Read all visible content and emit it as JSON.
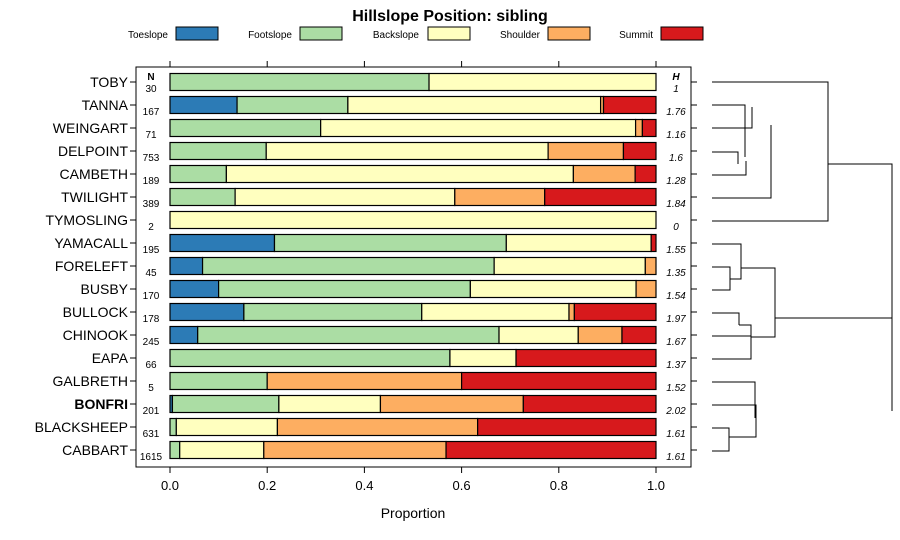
{
  "chart_data": {
    "type": "bar",
    "stacked": true,
    "orientation": "horizontal",
    "title": "Hillslope Position: sibling",
    "xlabel": "Proportion",
    "ylabel": "",
    "xlim": [
      0,
      1
    ],
    "x_ticks": [
      "0.0",
      "0.2",
      "0.4",
      "0.6",
      "0.8",
      "1.0"
    ],
    "x_tick_values": [
      0,
      0.2,
      0.4,
      0.6,
      0.8,
      1.0
    ],
    "n_header": "N",
    "h_header": "H",
    "highlight": "BONFRI",
    "series": [
      {
        "name": "Toeslope",
        "color": "#2c7bb6"
      },
      {
        "name": "Footslope",
        "color": "#abdda4"
      },
      {
        "name": "Backslope",
        "color": "#ffffbf"
      },
      {
        "name": "Shoulder",
        "color": "#fdae61"
      },
      {
        "name": "Summit",
        "color": "#d7191c"
      }
    ],
    "rows": [
      {
        "name": "TOBY",
        "n": "30",
        "h": "1",
        "values": [
          0,
          0.533,
          0.467,
          0,
          0
        ]
      },
      {
        "name": "TANNA",
        "n": "167",
        "h": "1.76",
        "values": [
          0.138,
          0.228,
          0.52,
          0.006,
          0.108
        ]
      },
      {
        "name": "WEINGART",
        "n": "71",
        "h": "1.16",
        "values": [
          0,
          0.31,
          0.648,
          0.014,
          0.028
        ]
      },
      {
        "name": "DELPOINT",
        "n": "753",
        "h": "1.6",
        "values": [
          0,
          0.198,
          0.58,
          0.155,
          0.067
        ]
      },
      {
        "name": "CAMBETH",
        "n": "189",
        "h": "1.28",
        "values": [
          0,
          0.116,
          0.714,
          0.127,
          0.043
        ]
      },
      {
        "name": "TWILIGHT",
        "n": "389",
        "h": "1.84",
        "values": [
          0,
          0.134,
          0.452,
          0.185,
          0.229
        ]
      },
      {
        "name": "TYMOSLING",
        "n": "2",
        "h": "0",
        "values": [
          0,
          0,
          1,
          0,
          0
        ]
      },
      {
        "name": "YAMACALL",
        "n": "195",
        "h": "1.55",
        "values": [
          0.215,
          0.477,
          0.298,
          0,
          0.01
        ]
      },
      {
        "name": "FORELEFT",
        "n": "45",
        "h": "1.35",
        "values": [
          0.067,
          0.6,
          0.311,
          0.022,
          0
        ]
      },
      {
        "name": "BUSBY",
        "n": "170",
        "h": "1.54",
        "values": [
          0.1,
          0.518,
          0.341,
          0.041,
          0
        ]
      },
      {
        "name": "BULLOCK",
        "n": "178",
        "h": "1.97",
        "values": [
          0.152,
          0.366,
          0.303,
          0.011,
          0.168
        ]
      },
      {
        "name": "CHINOOK",
        "n": "245",
        "h": "1.67",
        "values": [
          0.057,
          0.62,
          0.163,
          0.09,
          0.07
        ]
      },
      {
        "name": "EAPA",
        "n": "66",
        "h": "1.37",
        "values": [
          0,
          0.576,
          0.136,
          0,
          0.288
        ]
      },
      {
        "name": "GALBRETH",
        "n": "5",
        "h": "1.52",
        "values": [
          0,
          0.2,
          0,
          0.4,
          0.4
        ]
      },
      {
        "name": "BONFRI",
        "n": "201",
        "h": "2.02",
        "values": [
          0.005,
          0.219,
          0.209,
          0.294,
          0.273
        ]
      },
      {
        "name": "BLACKSHEEP",
        "n": "631",
        "h": "1.61",
        "values": [
          0,
          0.013,
          0.208,
          0.412,
          0.367
        ]
      },
      {
        "name": "CABBART",
        "n": "1615",
        "h": "1.61",
        "values": [
          0,
          0.02,
          0.173,
          0.375,
          0.432
        ]
      }
    ]
  }
}
